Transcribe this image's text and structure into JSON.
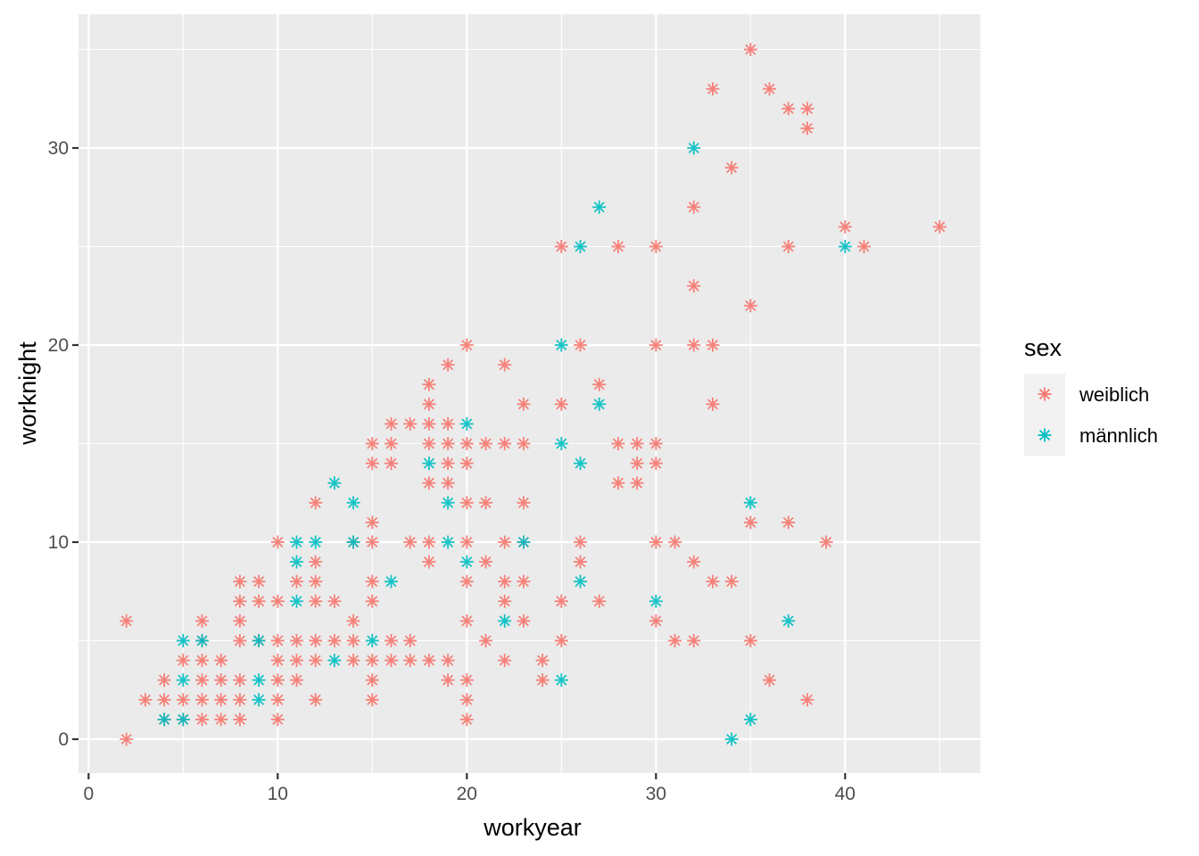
{
  "chart_data": {
    "type": "scatter",
    "title": "",
    "xlabel": "workyear",
    "ylabel": "worknight",
    "xlim": [
      0,
      47
    ],
    "ylim": [
      -1.8,
      36.6
    ],
    "x_ticks": [
      0,
      10,
      20,
      30,
      40
    ],
    "y_ticks": [
      0,
      10,
      20,
      30
    ],
    "grid": true,
    "marker": "asterisk",
    "legend": {
      "title": "sex",
      "position": "right",
      "entries": [
        {
          "label": "weiblich",
          "color": "#F8766D"
        },
        {
          "label": "männlich",
          "color": "#00BFC4"
        }
      ]
    },
    "series": [
      {
        "name": "weiblich",
        "color": "#F8766D",
        "points": [
          [
            2,
            0
          ],
          [
            2,
            6
          ],
          [
            3,
            2
          ],
          [
            4,
            2
          ],
          [
            4,
            3
          ],
          [
            4,
            1
          ],
          [
            5,
            2
          ],
          [
            5,
            4
          ],
          [
            5,
            1
          ],
          [
            6,
            1
          ],
          [
            6,
            2
          ],
          [
            6,
            3
          ],
          [
            6,
            4
          ],
          [
            6,
            5
          ],
          [
            6,
            6
          ],
          [
            7,
            1
          ],
          [
            7,
            2
          ],
          [
            7,
            3
          ],
          [
            7,
            4
          ],
          [
            8,
            1
          ],
          [
            8,
            2
          ],
          [
            8,
            3
          ],
          [
            8,
            5
          ],
          [
            8,
            6
          ],
          [
            8,
            7
          ],
          [
            8,
            8
          ],
          [
            9,
            5
          ],
          [
            9,
            7
          ],
          [
            9,
            8
          ],
          [
            10,
            1
          ],
          [
            10,
            2
          ],
          [
            10,
            3
          ],
          [
            10,
            4
          ],
          [
            10,
            5
          ],
          [
            10,
            7
          ],
          [
            10,
            10
          ],
          [
            11,
            3
          ],
          [
            11,
            4
          ],
          [
            11,
            5
          ],
          [
            11,
            8
          ],
          [
            12,
            2
          ],
          [
            12,
            4
          ],
          [
            12,
            5
          ],
          [
            12,
            7
          ],
          [
            12,
            8
          ],
          [
            12,
            9
          ],
          [
            12,
            12
          ],
          [
            13,
            5
          ],
          [
            13,
            7
          ],
          [
            14,
            4
          ],
          [
            14,
            5
          ],
          [
            14,
            6
          ],
          [
            14,
            10
          ],
          [
            15,
            2
          ],
          [
            15,
            3
          ],
          [
            15,
            4
          ],
          [
            15,
            7
          ],
          [
            15,
            8
          ],
          [
            15,
            10
          ],
          [
            15,
            11
          ],
          [
            15,
            14
          ],
          [
            15,
            15
          ],
          [
            16,
            4
          ],
          [
            16,
            5
          ],
          [
            16,
            14
          ],
          [
            16,
            15
          ],
          [
            16,
            16
          ],
          [
            17,
            4
          ],
          [
            17,
            5
          ],
          [
            17,
            10
          ],
          [
            17,
            16
          ],
          [
            18,
            4
          ],
          [
            18,
            9
          ],
          [
            18,
            10
          ],
          [
            18,
            13
          ],
          [
            18,
            15
          ],
          [
            18,
            16
          ],
          [
            18,
            17
          ],
          [
            18,
            18
          ],
          [
            19,
            3
          ],
          [
            19,
            4
          ],
          [
            19,
            13
          ],
          [
            19,
            14
          ],
          [
            19,
            15
          ],
          [
            19,
            16
          ],
          [
            19,
            19
          ],
          [
            20,
            1
          ],
          [
            20,
            2
          ],
          [
            20,
            3
          ],
          [
            20,
            6
          ],
          [
            20,
            8
          ],
          [
            20,
            10
          ],
          [
            20,
            12
          ],
          [
            20,
            14
          ],
          [
            20,
            15
          ],
          [
            20,
            20
          ],
          [
            21,
            5
          ],
          [
            21,
            9
          ],
          [
            21,
            12
          ],
          [
            21,
            15
          ],
          [
            22,
            4
          ],
          [
            22,
            7
          ],
          [
            22,
            8
          ],
          [
            22,
            10
          ],
          [
            22,
            15
          ],
          [
            22,
            19
          ],
          [
            23,
            6
          ],
          [
            23,
            8
          ],
          [
            23,
            10
          ],
          [
            23,
            12
          ],
          [
            23,
            15
          ],
          [
            23,
            17
          ],
          [
            24,
            3
          ],
          [
            24,
            4
          ],
          [
            25,
            5
          ],
          [
            25,
            7
          ],
          [
            25,
            17
          ],
          [
            25,
            25
          ],
          [
            26,
            9
          ],
          [
            26,
            10
          ],
          [
            26,
            20
          ],
          [
            27,
            7
          ],
          [
            27,
            18
          ],
          [
            28,
            13
          ],
          [
            28,
            15
          ],
          [
            28,
            25
          ],
          [
            29,
            13
          ],
          [
            29,
            14
          ],
          [
            29,
            15
          ],
          [
            30,
            6
          ],
          [
            30,
            10
          ],
          [
            30,
            14
          ],
          [
            30,
            15
          ],
          [
            30,
            20
          ],
          [
            30,
            25
          ],
          [
            31,
            5
          ],
          [
            31,
            10
          ],
          [
            32,
            5
          ],
          [
            32,
            9
          ],
          [
            32,
            20
          ],
          [
            32,
            23
          ],
          [
            32,
            27
          ],
          [
            33,
            8
          ],
          [
            33,
            17
          ],
          [
            33,
            20
          ],
          [
            33,
            33
          ],
          [
            34,
            8
          ],
          [
            34,
            29
          ],
          [
            35,
            5
          ],
          [
            35,
            11
          ],
          [
            35,
            22
          ],
          [
            35,
            35
          ],
          [
            36,
            3
          ],
          [
            36,
            33
          ],
          [
            37,
            11
          ],
          [
            37,
            25
          ],
          [
            37,
            32
          ],
          [
            38,
            2
          ],
          [
            38,
            31
          ],
          [
            38,
            32
          ],
          [
            39,
            10
          ],
          [
            40,
            26
          ],
          [
            41,
            25
          ],
          [
            45,
            26
          ]
        ]
      },
      {
        "name": "männlich",
        "color": "#00BFC4",
        "points": [
          [
            4,
            1
          ],
          [
            5,
            1
          ],
          [
            5,
            3
          ],
          [
            5,
            5
          ],
          [
            6,
            5
          ],
          [
            9,
            2
          ],
          [
            9,
            3
          ],
          [
            9,
            5
          ],
          [
            11,
            7
          ],
          [
            11,
            9
          ],
          [
            11,
            10
          ],
          [
            12,
            10
          ],
          [
            13,
            4
          ],
          [
            13,
            13
          ],
          [
            14,
            10
          ],
          [
            14,
            12
          ],
          [
            15,
            5
          ],
          [
            16,
            8
          ],
          [
            18,
            14
          ],
          [
            19,
            10
          ],
          [
            19,
            12
          ],
          [
            20,
            9
          ],
          [
            20,
            16
          ],
          [
            22,
            6
          ],
          [
            23,
            10
          ],
          [
            25,
            3
          ],
          [
            25,
            15
          ],
          [
            25,
            20
          ],
          [
            26,
            8
          ],
          [
            26,
            14
          ],
          [
            26,
            25
          ],
          [
            27,
            17
          ],
          [
            27,
            27
          ],
          [
            30,
            7
          ],
          [
            32,
            30
          ],
          [
            34,
            0
          ],
          [
            35,
            1
          ],
          [
            35,
            12
          ],
          [
            37,
            6
          ],
          [
            40,
            25
          ]
        ]
      }
    ]
  }
}
